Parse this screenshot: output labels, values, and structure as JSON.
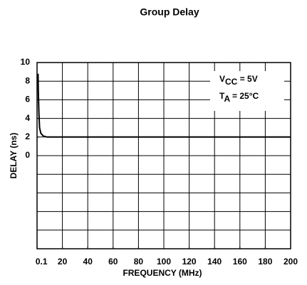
{
  "chart_data": {
    "type": "line",
    "title": "Group Delay",
    "x_label": "FREQUENCY (MHz)",
    "y_label": "DELAY (ns)",
    "x": [
      0.8,
      1,
      1.5,
      2,
      3,
      5,
      8,
      20,
      100,
      200
    ],
    "series": [
      {
        "name": "Delay",
        "color": "#000000",
        "values": [
          8.8,
          7,
          4.5,
          3,
          2.4,
          2.1,
          2,
          2,
          2,
          2
        ]
      }
    ],
    "xlim": [
      0,
      200
    ],
    "xticks": [
      0.1,
      20,
      40,
      60,
      80,
      100,
      120,
      140,
      160,
      180,
      200
    ],
    "ylim": [
      -10,
      10
    ],
    "yticks": [
      0,
      2,
      4,
      6,
      8,
      10
    ],
    "grid": true,
    "annotations": [
      {
        "main": "V",
        "sub": "CC",
        "rest": " = 5V"
      },
      {
        "main": "T",
        "sub": "A",
        "rest": " = 25°C"
      }
    ]
  }
}
